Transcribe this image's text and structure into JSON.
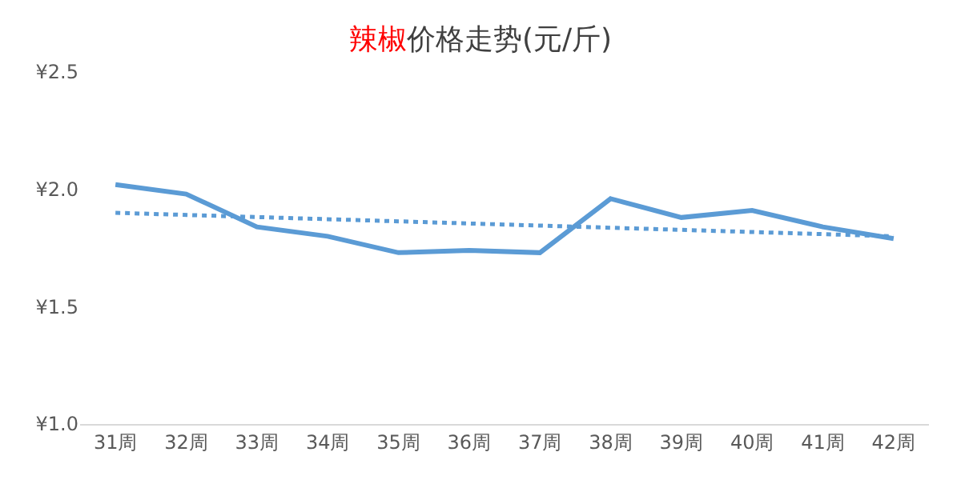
{
  "chart_data": {
    "type": "line",
    "title": "辣椒价格走势(元/斤)",
    "categories": [
      "31周",
      "32周",
      "33周",
      "34周",
      "35周",
      "36周",
      "37周",
      "38周",
      "39周",
      "40周",
      "41周",
      "42周"
    ],
    "series": [
      {
        "color": "#5b9bd5",
        "values": [
          2.02,
          1.98,
          1.84,
          1.8,
          1.73,
          1.74,
          1.73,
          1.96,
          1.88,
          1.91,
          1.84,
          1.79
        ],
        "line_style": "solid"
      },
      {
        "type": "line",
        "color": "#5b9bd5",
        "x": [
          "31周",
          "42周"
        ],
        "values": [
          1.9,
          1.8
        ],
        "line_style": "dotted"
      }
    ],
    "ylim": [
      1.0,
      2.5
    ],
    "yticks": [
      {
        "value": 1.0,
        "label": "¥1.0"
      },
      {
        "value": 1.5,
        "label": "¥1.5"
      },
      {
        "value": 2.0,
        "label": "¥2.0"
      },
      {
        "value": 2.5,
        "label": "¥2.5"
      }
    ],
    "marker": "none"
  }
}
